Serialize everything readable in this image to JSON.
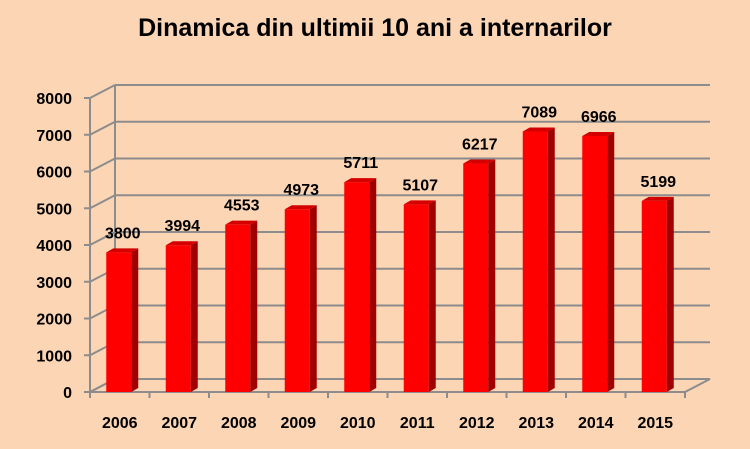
{
  "chart_data": {
    "type": "bar",
    "title": "Dinamica din ultimii 10 ani a internarilor",
    "categories": [
      "2006",
      "2007",
      "2008",
      "2009",
      "2010",
      "2011",
      "2012",
      "2013",
      "2014",
      "2015"
    ],
    "values": [
      3800,
      3994,
      4553,
      4973,
      5711,
      5107,
      6217,
      7089,
      6966,
      5199
    ],
    "xlabel": "",
    "ylabel": "",
    "ylim": [
      0,
      8000
    ],
    "yticks": [
      "0",
      "1000",
      "2000",
      "3000",
      "4000",
      "5000",
      "6000",
      "7000",
      "8000"
    ],
    "data_labels": [
      "3800",
      "3994",
      "4553",
      "4973",
      "5711",
      "5107",
      "6217",
      "7089",
      "6966",
      "5199"
    ],
    "grid": true,
    "legend": "none",
    "style": "3d-column",
    "colors": {
      "bar_front": "#ff0000",
      "bar_side": "#a00000",
      "bar_top": "#d40000",
      "background": "#fcd5b5",
      "grid": "#8c8c8c"
    }
  }
}
